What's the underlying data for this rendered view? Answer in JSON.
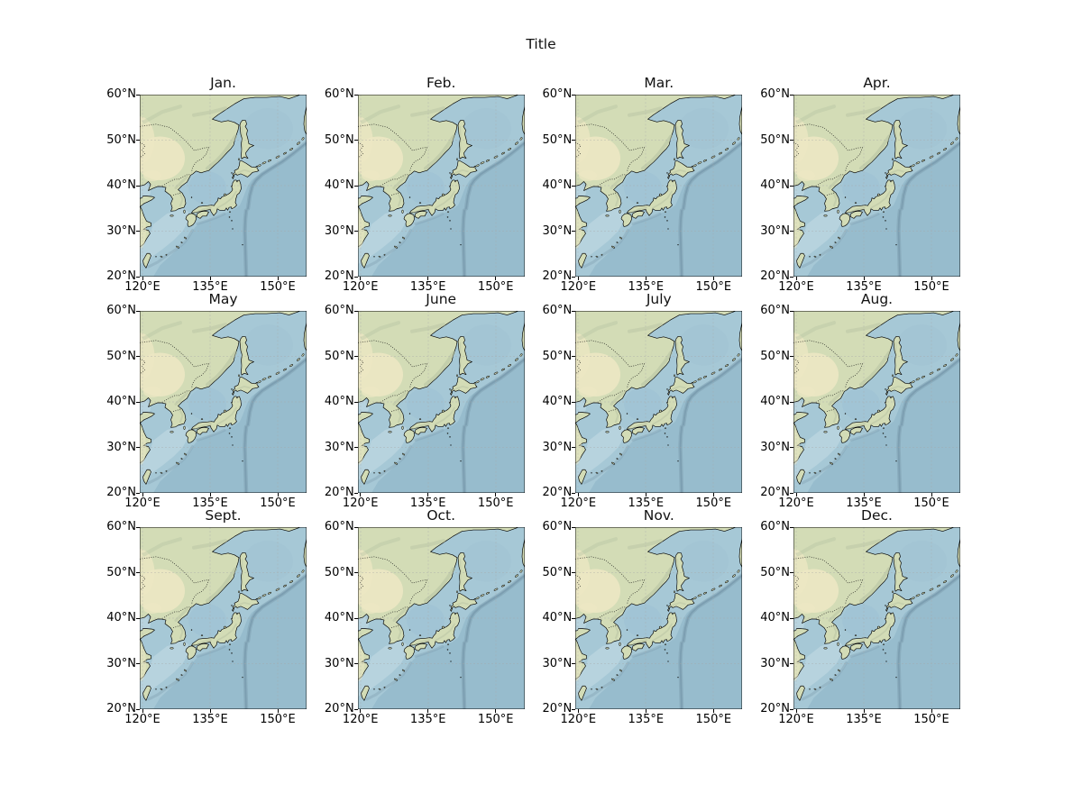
{
  "figure": {
    "title": "Title",
    "background": "#ffffff",
    "rows": 3,
    "cols": 4
  },
  "subplots": {
    "months": [
      "Jan.",
      "Feb.",
      "Mar.",
      "Apr.",
      "May",
      "June",
      "July",
      "Aug.",
      "Sept.",
      "Oct.",
      "Nov.",
      "Dec."
    ],
    "xtick_labels": [
      "120°E",
      "135°E",
      "150°E"
    ],
    "ytick_labels": [
      "60°N",
      "50°N",
      "40°N",
      "30°N",
      "20°N"
    ],
    "extent": {
      "lon_min": 120,
      "lon_max": 156,
      "lat_min": 20,
      "lat_max": 60
    }
  },
  "map": {
    "region": "Japan / Northeast Asia shaded-relief basemap",
    "colors": {
      "ocean_base": "#a6c8d6",
      "ocean_deep": "#97bccd",
      "ocean_shelf": "#b7d3de",
      "ocean_basin": "#9fc2d3",
      "trench": "#7e9db0",
      "trench_core": "#6e8fa3",
      "land": "#d3dcb6",
      "land_arid": "#ece7c3",
      "ridge": "#b3bfa0",
      "coast": "#000000",
      "grid": "#aaaaaa"
    }
  }
}
